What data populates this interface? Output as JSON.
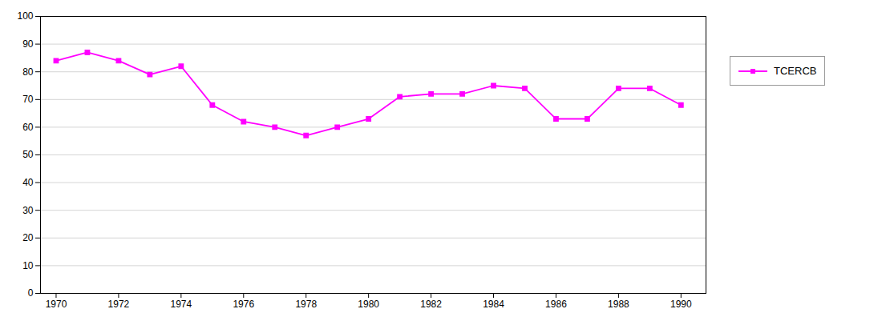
{
  "chart_data": {
    "type": "line",
    "x": [
      1970,
      1971,
      1972,
      1973,
      1974,
      1975,
      1976,
      1977,
      1978,
      1979,
      1980,
      1981,
      1982,
      1983,
      1984,
      1985,
      1986,
      1987,
      1988,
      1989,
      1990
    ],
    "series": [
      {
        "name": "TCERCB",
        "color": "#FF00FF",
        "marker": "square",
        "values": [
          84,
          87,
          84,
          79,
          82,
          68,
          62,
          60,
          57,
          60,
          63,
          71,
          72,
          72,
          75,
          74,
          63,
          63,
          74,
          74,
          68
        ]
      }
    ],
    "xlim": [
      1969.5,
      1990.8
    ],
    "xticks": [
      1970,
      1972,
      1974,
      1976,
      1978,
      1980,
      1982,
      1984,
      1986,
      1988,
      1990
    ],
    "ylim": [
      0,
      100
    ],
    "yticks": [
      0,
      10,
      20,
      30,
      40,
      50,
      60,
      70,
      80,
      90,
      100
    ],
    "grid": true,
    "legend": "right"
  }
}
